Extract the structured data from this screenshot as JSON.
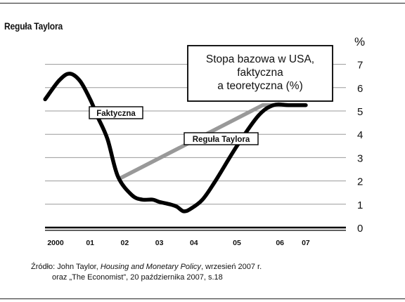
{
  "chart_data": {
    "type": "line",
    "title": "Reguła Taylora",
    "legend_box": [
      "Stopa bazowa w USA,",
      "faktyczna",
      "a teoretyczna (%)"
    ],
    "unit": "%",
    "ylim": [
      0,
      7
    ],
    "yticks": [
      "0",
      "1",
      "2",
      "3",
      "4",
      "5",
      "6",
      "7"
    ],
    "xlim": [
      2000,
      2007.1
    ],
    "xticks": [
      {
        "label": "2000",
        "x": 2000
      },
      {
        "label": "01",
        "x": 2001
      },
      {
        "label": "02",
        "x": 2002
      },
      {
        "label": "03",
        "x": 2003
      },
      {
        "label": "04",
        "x": 2004
      },
      {
        "label": "05",
        "x": 2005
      },
      {
        "label": "06",
        "x": 2006
      },
      {
        "label": "07",
        "x": 2006.6
      }
    ],
    "grid": true,
    "series": [
      {
        "name": "Faktyczna",
        "color": "#000000",
        "points": [
          [
            1999.7,
            5.5
          ],
          [
            2000.1,
            6.3
          ],
          [
            2000.4,
            6.6
          ],
          [
            2000.7,
            6.3
          ],
          [
            2001.0,
            5.5
          ],
          [
            2001.2,
            4.8
          ],
          [
            2001.5,
            3.8
          ],
          [
            2001.8,
            2.2
          ],
          [
            2002.2,
            1.4
          ],
          [
            2002.5,
            1.2
          ],
          [
            2002.8,
            1.2
          ],
          [
            2003.0,
            1.1
          ],
          [
            2003.3,
            1.0
          ],
          [
            2003.5,
            0.9
          ],
          [
            2003.7,
            0.7
          ],
          [
            2003.9,
            0.8
          ],
          [
            2004.2,
            1.2
          ],
          [
            2004.5,
            2.0
          ],
          [
            2005.0,
            3.5
          ],
          [
            2005.5,
            4.8
          ],
          [
            2005.85,
            5.25
          ],
          [
            2006.2,
            5.25
          ],
          [
            2006.6,
            5.25
          ]
        ]
      },
      {
        "name": "Reguła Taylora",
        "color": "#999999",
        "points": [
          [
            2001.85,
            2.1
          ],
          [
            2005.6,
            5.25
          ],
          [
            2006.6,
            5.25
          ]
        ]
      }
    ]
  },
  "source": {
    "line1_prefix": "Źródło: John Taylor, ",
    "line1_title": "Housing and Monetary Policy",
    "line1_suffix": ", wrzesień 2007 r.",
    "line2": "oraz „The Economist”, 20 października 2007,  s.18"
  }
}
